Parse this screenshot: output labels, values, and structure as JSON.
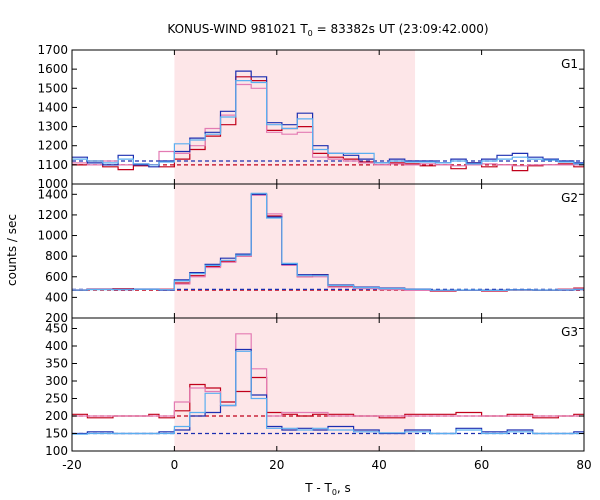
{
  "chart_data": {
    "type": "line",
    "title_parts": {
      "a": "KONUS-WIND 981021 T",
      "sub": "0",
      "b": " = 83382s UT (23:09:42.000)"
    },
    "xlabel_parts": {
      "a": "T - T",
      "sub": "0",
      "b": ", s"
    },
    "ylabel": "counts / sec",
    "xlim": [
      -20,
      80
    ],
    "xticks": [
      "-20",
      "0",
      "20",
      "40",
      "60",
      "80"
    ],
    "highlight_region": [
      0,
      47
    ],
    "colors": {
      "dark_red": "#c0001a",
      "pink": "#e37bb3",
      "dark_blue": "#1c2fb0",
      "light_blue": "#5aaef0",
      "shade": "#fde6e8"
    },
    "panels": [
      {
        "label": "G1",
        "ylim": [
          1000,
          1700
        ],
        "yticks": [
          "1000",
          "1100",
          "1200",
          "1300",
          "1400",
          "1500",
          "1600",
          "1700"
        ],
        "background": [
          {
            "color": "dark_red",
            "level": 1100
          },
          {
            "color": "dark_blue",
            "level": 1120
          }
        ],
        "series": [
          {
            "color": "dark_red",
            "x": [
              -20,
              -17,
              -14,
              -11,
              -8,
              -5,
              -3,
              0,
              3,
              6,
              9,
              12,
              15,
              18,
              21,
              24,
              27,
              30,
              33,
              36,
              39,
              42,
              45,
              48,
              51,
              54,
              57,
              60,
              63,
              66,
              69,
              72,
              75,
              78,
              80
            ],
            "values": [
              1100,
              1120,
              1090,
              1075,
              1095,
              1100,
              1090,
              1130,
              1180,
              1250,
              1310,
              1560,
              1540,
              1280,
              1290,
              1300,
              1160,
              1140,
              1130,
              1115,
              1100,
              1110,
              1105,
              1095,
              1100,
              1080,
              1110,
              1090,
              1100,
              1070,
              1095,
              1100,
              1105,
              1090,
              1100
            ]
          },
          {
            "color": "pink",
            "x": [
              -20,
              -17,
              -14,
              -11,
              -8,
              -5,
              -3,
              0,
              3,
              6,
              9,
              12,
              15,
              18,
              21,
              24,
              27,
              30,
              33,
              36,
              39,
              42,
              45,
              48,
              51,
              54,
              57,
              60,
              63,
              66,
              69,
              72,
              75,
              78,
              80
            ],
            "values": [
              1110,
              1100,
              1120,
              1100,
              1105,
              1100,
              1170,
              1160,
              1200,
              1290,
              1360,
              1520,
              1500,
              1270,
              1260,
              1270,
              1140,
              1130,
              1120,
              1110,
              1100,
              1105,
              1100,
              1105,
              1100,
              1095,
              1100,
              1105,
              1100,
              1095,
              1100,
              1100,
              1100,
              1100,
              1100
            ]
          },
          {
            "color": "dark_blue",
            "x": [
              -20,
              -17,
              -14,
              -11,
              -8,
              -5,
              -3,
              0,
              3,
              6,
              9,
              12,
              15,
              18,
              21,
              24,
              27,
              30,
              33,
              36,
              39,
              42,
              45,
              48,
              51,
              54,
              57,
              60,
              63,
              66,
              69,
              72,
              75,
              78,
              80
            ],
            "values": [
              1140,
              1110,
              1100,
              1150,
              1100,
              1090,
              1120,
              1170,
              1240,
              1270,
              1380,
              1590,
              1560,
              1320,
              1310,
              1370,
              1200,
              1160,
              1150,
              1130,
              1110,
              1130,
              1120,
              1120,
              1110,
              1130,
              1110,
              1130,
              1150,
              1160,
              1140,
              1130,
              1120,
              1110,
              1120
            ]
          },
          {
            "color": "light_blue",
            "x": [
              -20,
              -17,
              -14,
              -11,
              -8,
              -5,
              -3,
              0,
              3,
              6,
              9,
              12,
              15,
              18,
              21,
              24,
              27,
              30,
              33,
              36,
              39,
              42,
              45,
              48,
              51,
              54,
              57,
              60,
              63,
              66,
              69,
              72,
              75,
              78,
              80
            ],
            "values": [
              1130,
              1120,
              1110,
              1130,
              1105,
              1100,
              1115,
              1210,
              1230,
              1260,
              1350,
              1540,
              1530,
              1310,
              1290,
              1340,
              1180,
              1160,
              1160,
              1160,
              1110,
              1120,
              1115,
              1115,
              1110,
              1120,
              1105,
              1120,
              1130,
              1140,
              1130,
              1125,
              1115,
              1105,
              1115
            ]
          }
        ]
      },
      {
        "label": "G2",
        "ylim": [
          200,
          1500
        ],
        "yticks": [
          "200",
          "400",
          "600",
          "800",
          "1000",
          "1200",
          "1400"
        ],
        "background": [
          {
            "color": "dark_red",
            "level": 470
          },
          {
            "color": "dark_blue",
            "level": 478
          }
        ],
        "series": [
          {
            "color": "dark_red",
            "x": [
              -20,
              -17,
              -12,
              -8,
              -3,
              0,
              3,
              6,
              9,
              12,
              15,
              18,
              21,
              24,
              27,
              30,
              35,
              40,
              45,
              50,
              55,
              60,
              65,
              70,
              75,
              78,
              80
            ],
            "values": [
              470,
              480,
              485,
              480,
              480,
              540,
              610,
              700,
              750,
              800,
              1400,
              1190,
              720,
              600,
              620,
              510,
              490,
              480,
              470,
              460,
              470,
              460,
              470,
              470,
              480,
              490,
              490
            ]
          },
          {
            "color": "pink",
            "x": [
              -20,
              -17,
              -12,
              -8,
              -3,
              0,
              3,
              6,
              9,
              12,
              15,
              18,
              21,
              24,
              27,
              30,
              35,
              40,
              45,
              50,
              55,
              60,
              65,
              70,
              75,
              78,
              80
            ],
            "values": [
              475,
              478,
              480,
              478,
              478,
              530,
              600,
              690,
              740,
              800,
              1390,
              1210,
              710,
              600,
              600,
              500,
              485,
              475,
              468,
              465,
              470,
              465,
              470,
              472,
              478,
              482,
              482
            ]
          },
          {
            "color": "dark_blue",
            "x": [
              -20,
              -17,
              -12,
              -8,
              -3,
              0,
              3,
              6,
              9,
              12,
              15,
              18,
              21,
              24,
              27,
              30,
              35,
              40,
              45,
              50,
              55,
              60,
              65,
              70,
              75,
              78,
              80
            ],
            "values": [
              470,
              478,
              475,
              480,
              470,
              570,
              640,
              720,
              780,
              820,
              1400,
              1180,
              720,
              620,
              620,
              520,
              500,
              490,
              480,
              470,
              470,
              470,
              475,
              470,
              470,
              475,
              475
            ]
          },
          {
            "color": "light_blue",
            "x": [
              -20,
              -17,
              -12,
              -8,
              -3,
              0,
              3,
              6,
              9,
              12,
              15,
              18,
              21,
              24,
              27,
              30,
              35,
              40,
              45,
              50,
              55,
              60,
              65,
              70,
              75,
              78,
              80
            ],
            "values": [
              472,
              476,
              478,
              478,
              475,
              560,
              630,
              710,
              760,
              810,
              1410,
              1170,
              730,
              610,
              610,
              515,
              495,
              485,
              478,
              470,
              472,
              468,
              472,
              472,
              474,
              478,
              478
            ]
          }
        ]
      },
      {
        "label": "G3",
        "ylim": [
          100,
          480
        ],
        "yticks": [
          "100",
          "150",
          "200",
          "250",
          "300",
          "350",
          "400",
          "450"
        ],
        "background": [
          {
            "color": "dark_red",
            "level": 200
          },
          {
            "color": "dark_blue",
            "level": 150
          }
        ],
        "series": [
          {
            "color": "dark_red",
            "x": [
              -20,
              -17,
              -12,
              -8,
              -5,
              -3,
              0,
              3,
              6,
              9,
              12,
              15,
              18,
              21,
              24,
              27,
              30,
              35,
              40,
              45,
              50,
              55,
              60,
              65,
              70,
              75,
              78,
              80
            ],
            "values": [
              205,
              195,
              200,
              200,
              205,
              195,
              215,
              290,
              280,
              240,
              270,
              310,
              210,
              205,
              200,
              205,
              205,
              200,
              195,
              205,
              205,
              210,
              200,
              205,
              195,
              200,
              205,
              205
            ]
          },
          {
            "color": "pink",
            "x": [
              -20,
              -17,
              -12,
              -8,
              -5,
              -3,
              0,
              3,
              6,
              9,
              12,
              15,
              18,
              21,
              24,
              27,
              30,
              35,
              40,
              45,
              50,
              55,
              60,
              65,
              70,
              75,
              78,
              80
            ],
            "values": [
              200,
              200,
              200,
              200,
              200,
              200,
              240,
              280,
              270,
              230,
              435,
              335,
              200,
              210,
              210,
              210,
              200,
              200,
              200,
              200,
              200,
              200,
              200,
              200,
              200,
              200,
              200,
              200
            ]
          },
          {
            "color": "dark_blue",
            "x": [
              -20,
              -17,
              -12,
              -8,
              -5,
              -3,
              0,
              3,
              6,
              9,
              12,
              15,
              18,
              21,
              24,
              27,
              30,
              35,
              40,
              45,
              50,
              55,
              60,
              65,
              70,
              75,
              78,
              80
            ],
            "values": [
              150,
              155,
              150,
              150,
              150,
              155,
              160,
              200,
              210,
              230,
              390,
              260,
              170,
              160,
              165,
              160,
              170,
              160,
              150,
              160,
              150,
              165,
              155,
              160,
              150,
              150,
              155,
              155
            ]
          },
          {
            "color": "light_blue",
            "x": [
              -20,
              -17,
              -12,
              -8,
              -5,
              -3,
              0,
              3,
              6,
              9,
              12,
              15,
              18,
              21,
              24,
              27,
              30,
              35,
              40,
              45,
              50,
              55,
              60,
              65,
              70,
              75,
              78,
              80
            ],
            "values": [
              148,
              150,
              150,
              150,
              150,
              150,
              170,
              210,
              265,
              230,
              385,
              250,
              165,
              165,
              160,
              165,
              160,
              155,
              152,
              155,
              150,
              160,
              150,
              155,
              150,
              150,
              150,
              150
            ]
          }
        ]
      }
    ]
  }
}
